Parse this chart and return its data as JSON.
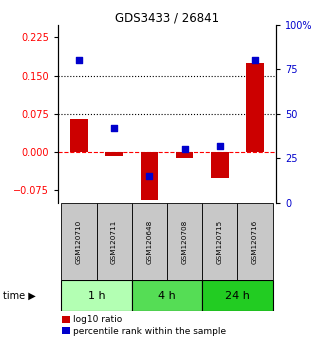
{
  "title": "GDS3433 / 26841",
  "samples": [
    "GSM120710",
    "GSM120711",
    "GSM120648",
    "GSM120708",
    "GSM120715",
    "GSM120716"
  ],
  "log10_ratio": [
    0.065,
    -0.008,
    -0.095,
    -0.012,
    -0.052,
    0.175
  ],
  "percentile_rank": [
    80,
    42,
    15,
    30,
    32,
    80
  ],
  "time_labels": [
    "1 h",
    "4 h",
    "24 h"
  ],
  "time_colors": [
    "#b3ffb3",
    "#55dd55",
    "#22cc22"
  ],
  "ylim_left": [
    -0.1,
    0.25
  ],
  "ylim_right": [
    0,
    100
  ],
  "yticks_left": [
    -0.075,
    0,
    0.075,
    0.15,
    0.225
  ],
  "yticks_right": [
    0,
    25,
    50,
    75,
    100
  ],
  "hlines": [
    0.075,
    0.15
  ],
  "bar_color": "#cc0000",
  "scatter_color": "#0000cc",
  "bar_width": 0.5,
  "background_color": "#ffffff",
  "sample_box_color": "#c8c8c8"
}
